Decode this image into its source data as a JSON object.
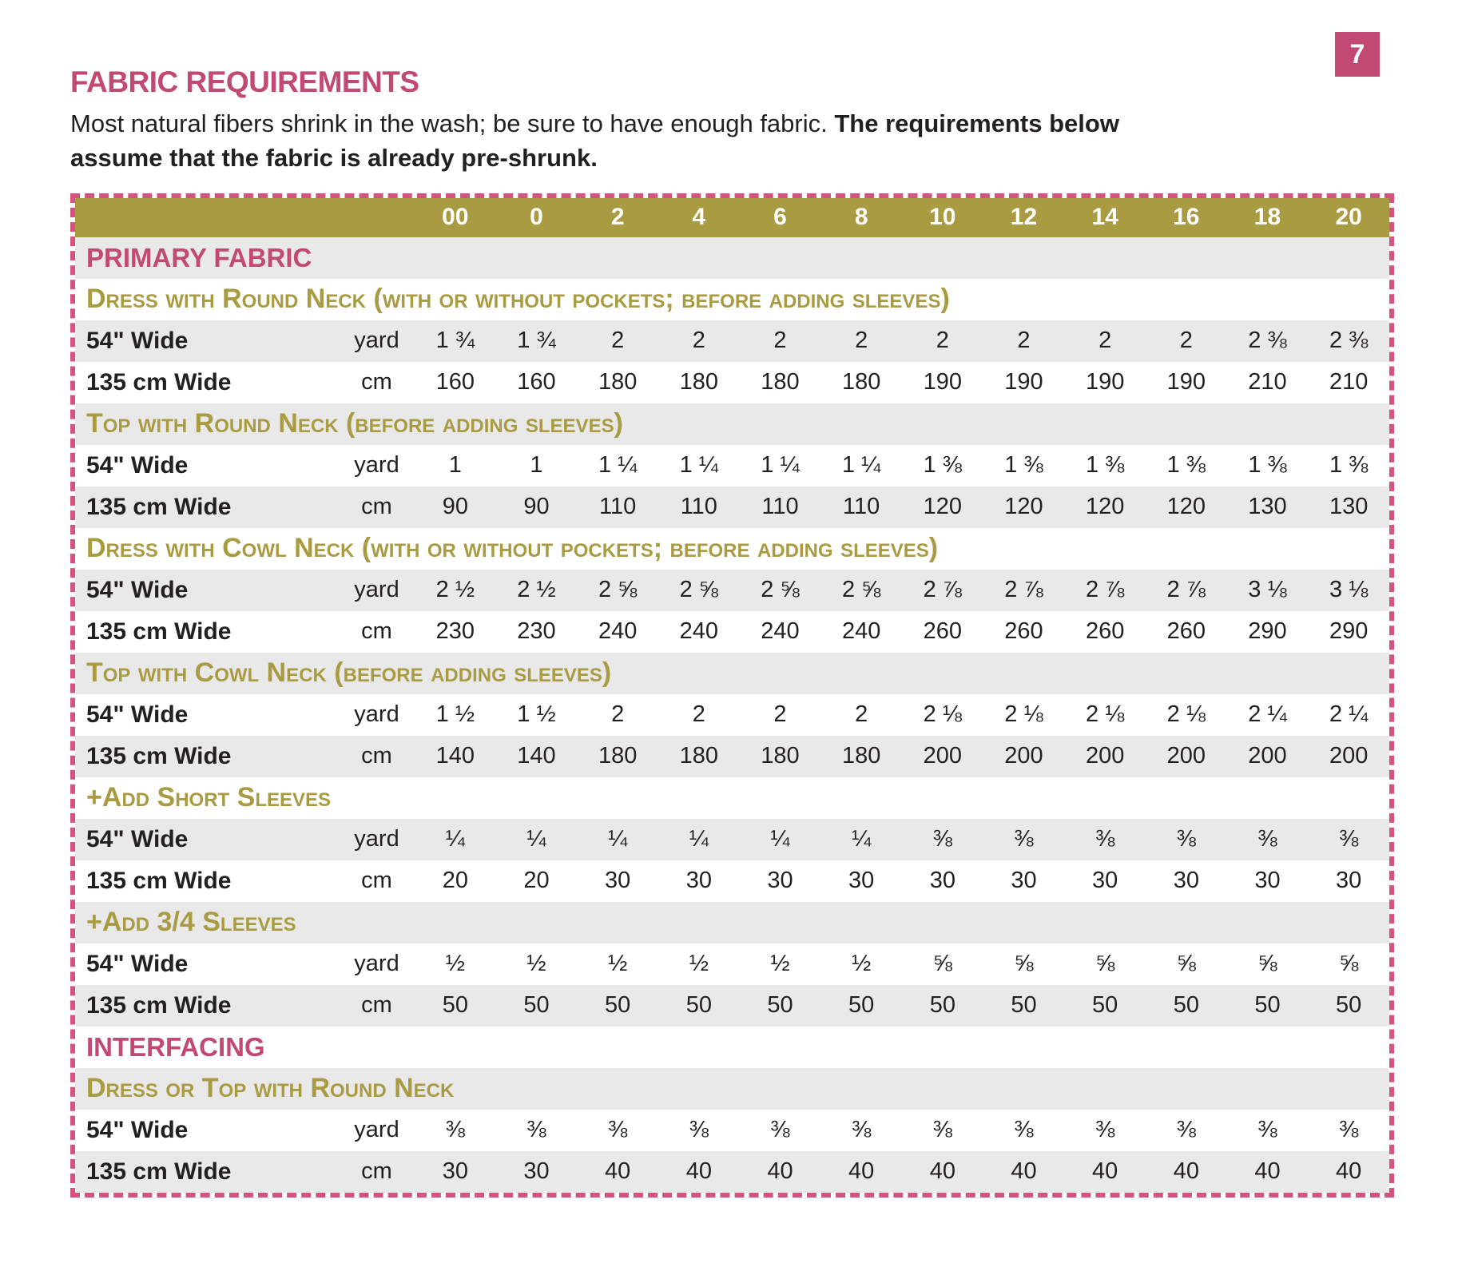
{
  "page": {
    "number": "7",
    "title": "FABRIC REQUIREMENTS",
    "intro_normal": "Most natural fibers shrink in the wash; be sure to have enough fabric. ",
    "intro_bold": "The requirements below assume that the fabric is already pre-shrunk."
  },
  "colors": {
    "accent_pink": "#c24973",
    "accent_olive": "#a99b41",
    "stripe_gray": "#e9e9e9",
    "dash_border_pink": "#d4547f",
    "text": "#231f20"
  },
  "table": {
    "sizes": [
      "00",
      "0",
      "2",
      "4",
      "6",
      "8",
      "10",
      "12",
      "14",
      "16",
      "18",
      "20"
    ],
    "rows": [
      {
        "type": "category",
        "label": "PRIMARY FABRIC"
      },
      {
        "type": "section",
        "label": "Dress with Round Neck (with or without pockets; before adding sleeves)"
      },
      {
        "type": "data",
        "label": "54\" Wide",
        "unit": "yard",
        "values": [
          "1 ¾",
          "1 ¾",
          "2",
          "2",
          "2",
          "2",
          "2",
          "2",
          "2",
          "2",
          "2 ⅜",
          "2 ⅜"
        ]
      },
      {
        "type": "data",
        "label": "135 cm Wide",
        "unit": "cm",
        "values": [
          "160",
          "160",
          "180",
          "180",
          "180",
          "180",
          "190",
          "190",
          "190",
          "190",
          "210",
          "210"
        ]
      },
      {
        "type": "section",
        "label": "Top with Round Neck (before adding sleeves)"
      },
      {
        "type": "data",
        "label": "54\" Wide",
        "unit": "yard",
        "values": [
          "1",
          "1",
          "1 ¼",
          "1 ¼",
          "1 ¼",
          "1 ¼",
          "1 ⅜",
          "1 ⅜",
          "1 ⅜",
          "1 ⅜",
          "1 ⅜",
          "1 ⅜"
        ]
      },
      {
        "type": "data",
        "label": "135 cm Wide",
        "unit": "cm",
        "values": [
          "90",
          "90",
          "110",
          "110",
          "110",
          "110",
          "120",
          "120",
          "120",
          "120",
          "130",
          "130"
        ]
      },
      {
        "type": "section",
        "label": "Dress with Cowl Neck (with or without pockets; before adding sleeves)"
      },
      {
        "type": "data",
        "label": "54\" Wide",
        "unit": "yard",
        "values": [
          "2 ½",
          "2 ½",
          "2 ⅝",
          "2 ⅝",
          "2 ⅝",
          "2 ⅝",
          "2 ⅞",
          "2 ⅞",
          "2 ⅞",
          "2 ⅞",
          "3 ⅛",
          "3 ⅛"
        ]
      },
      {
        "type": "data",
        "label": "135 cm Wide",
        "unit": "cm",
        "values": [
          "230",
          "230",
          "240",
          "240",
          "240",
          "240",
          "260",
          "260",
          "260",
          "260",
          "290",
          "290"
        ]
      },
      {
        "type": "section",
        "label": "Top with Cowl Neck (before adding sleeves)"
      },
      {
        "type": "data",
        "label": "54\" Wide",
        "unit": "yard",
        "values": [
          "1 ½",
          "1 ½",
          "2",
          "2",
          "2",
          "2",
          "2 ⅛",
          "2 ⅛",
          "2 ⅛",
          "2 ⅛",
          "2 ¼",
          "2 ¼"
        ]
      },
      {
        "type": "data",
        "label": "135 cm Wide",
        "unit": "cm",
        "values": [
          "140",
          "140",
          "180",
          "180",
          "180",
          "180",
          "200",
          "200",
          "200",
          "200",
          "200",
          "200"
        ]
      },
      {
        "type": "section",
        "label": "+Add Short Sleeves"
      },
      {
        "type": "data",
        "label": "54\" Wide",
        "unit": "yard",
        "values": [
          "¼",
          "¼",
          "¼",
          "¼",
          "¼",
          "¼",
          "⅜",
          "⅜",
          "⅜",
          "⅜",
          "⅜",
          "⅜"
        ]
      },
      {
        "type": "data",
        "label": "135 cm Wide",
        "unit": "cm",
        "values": [
          "20",
          "20",
          "30",
          "30",
          "30",
          "30",
          "30",
          "30",
          "30",
          "30",
          "30",
          "30"
        ]
      },
      {
        "type": "section",
        "label": "+Add 3/4 Sleeves"
      },
      {
        "type": "data",
        "label": "54\" Wide",
        "unit": "yard",
        "values": [
          "½",
          "½",
          "½",
          "½",
          "½",
          "½",
          "⅝",
          "⅝",
          "⅝",
          "⅝",
          "⅝",
          "⅝"
        ]
      },
      {
        "type": "data",
        "label": "135 cm Wide",
        "unit": "cm",
        "values": [
          "50",
          "50",
          "50",
          "50",
          "50",
          "50",
          "50",
          "50",
          "50",
          "50",
          "50",
          "50"
        ]
      },
      {
        "type": "category",
        "label": "INTERFACING"
      },
      {
        "type": "section",
        "label": "Dress or Top with Round Neck"
      },
      {
        "type": "data",
        "label": "54\" Wide",
        "unit": "yard",
        "values": [
          "⅜",
          "⅜",
          "⅜",
          "⅜",
          "⅜",
          "⅜",
          "⅜",
          "⅜",
          "⅜",
          "⅜",
          "⅜",
          "⅜"
        ]
      },
      {
        "type": "data",
        "label": "135 cm Wide",
        "unit": "cm",
        "values": [
          "30",
          "30",
          "40",
          "40",
          "40",
          "40",
          "40",
          "40",
          "40",
          "40",
          "40",
          "40"
        ]
      }
    ]
  }
}
